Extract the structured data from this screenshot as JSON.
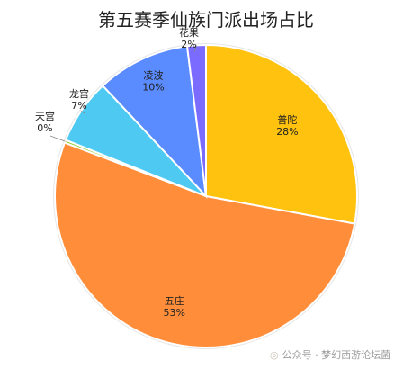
{
  "chart_data": {
    "type": "pie",
    "title": "第五赛季仙族门派出场占比",
    "slices": [
      {
        "label": "普陀",
        "value": 28,
        "value_label": "28%",
        "color": "#FFC20E"
      },
      {
        "label": "五庄",
        "value": 53,
        "value_label": "53%",
        "color": "#FF8D3A"
      },
      {
        "label": "天宫",
        "value": 0.3,
        "value_label": "0%",
        "color": "#9ACD32"
      },
      {
        "label": "龙宫",
        "value": 7,
        "value_label": "7%",
        "color": "#4EC9F2"
      },
      {
        "label": "凌波",
        "value": 10,
        "value_label": "10%",
        "color": "#5B8CFF"
      },
      {
        "label": "花果",
        "value": 2,
        "value_label": "2%",
        "color": "#7B6BFF"
      }
    ],
    "start_angle_deg": 0,
    "direction": "clockwise"
  },
  "watermark": {
    "text": "公众号 · 梦幻西游论坛菌"
  }
}
